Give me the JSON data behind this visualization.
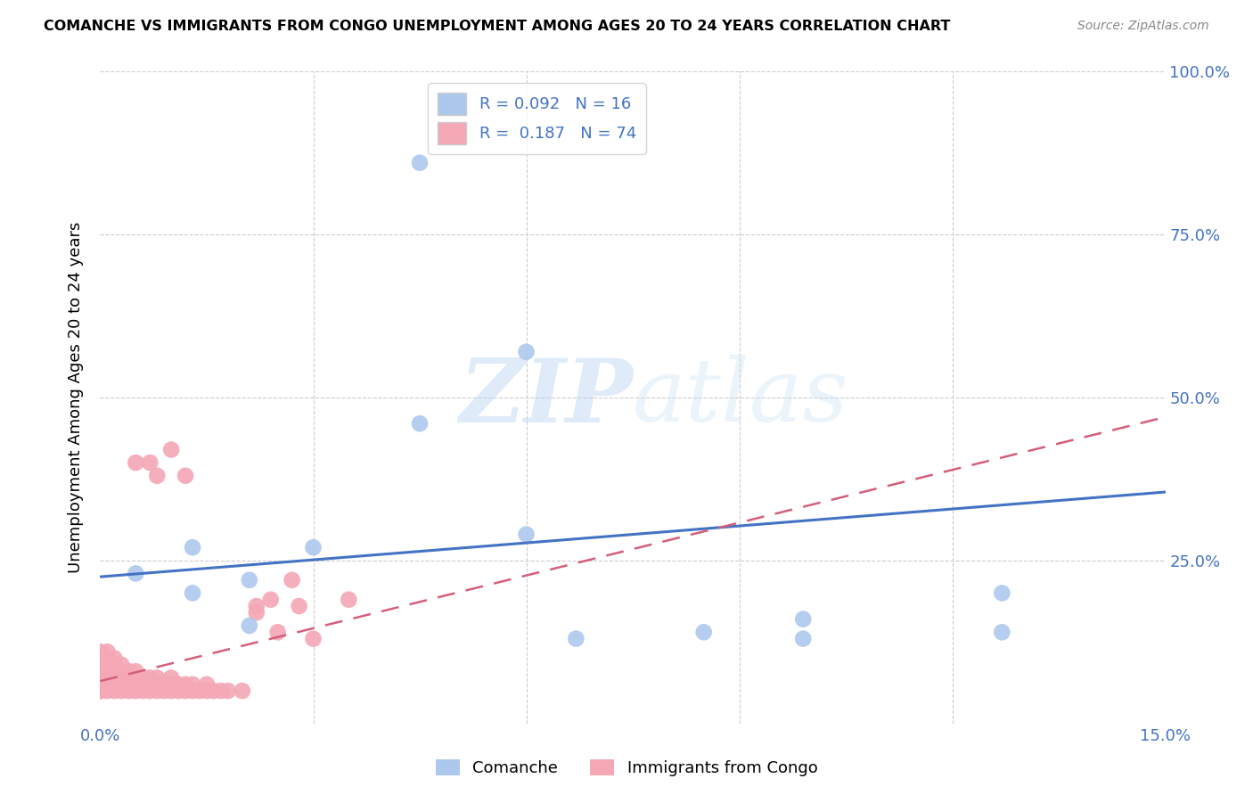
{
  "title": "COMANCHE VS IMMIGRANTS FROM CONGO UNEMPLOYMENT AMONG AGES 20 TO 24 YEARS CORRELATION CHART",
  "source": "Source: ZipAtlas.com",
  "ylabel": "Unemployment Among Ages 20 to 24 years",
  "xlim": [
    0.0,
    0.15
  ],
  "ylim": [
    0.0,
    1.0
  ],
  "comanche_R": 0.092,
  "comanche_N": 16,
  "congo_R": 0.187,
  "congo_N": 74,
  "comanche_color": "#adc8ed",
  "congo_color": "#f4a7b5",
  "comanche_line_color": "#4472c4",
  "congo_line_color": "#d45f7a",
  "background_color": "#ffffff",
  "comanche_x": [
    0.013,
    0.013,
    0.021,
    0.03,
    0.045,
    0.045,
    0.06,
    0.06,
    0.067,
    0.085,
    0.099,
    0.099,
    0.127,
    0.127,
    0.005,
    0.021
  ],
  "comanche_y": [
    0.27,
    0.2,
    0.22,
    0.27,
    0.86,
    0.46,
    0.57,
    0.29,
    0.13,
    0.14,
    0.16,
    0.13,
    0.2,
    0.14,
    0.23,
    0.15
  ],
  "congo_x": [
    0.0,
    0.0,
    0.0,
    0.0,
    0.0,
    0.0,
    0.0,
    0.0,
    0.001,
    0.001,
    0.001,
    0.001,
    0.001,
    0.001,
    0.001,
    0.002,
    0.002,
    0.002,
    0.002,
    0.002,
    0.002,
    0.003,
    0.003,
    0.003,
    0.003,
    0.003,
    0.004,
    0.004,
    0.004,
    0.004,
    0.005,
    0.005,
    0.005,
    0.005,
    0.006,
    0.006,
    0.006,
    0.007,
    0.007,
    0.007,
    0.008,
    0.008,
    0.008,
    0.009,
    0.009,
    0.01,
    0.01,
    0.01,
    0.011,
    0.011,
    0.012,
    0.012,
    0.013,
    0.013,
    0.014,
    0.015,
    0.015,
    0.016,
    0.017,
    0.018,
    0.02,
    0.022,
    0.024,
    0.025,
    0.027,
    0.028,
    0.03,
    0.035,
    0.005,
    0.007,
    0.008,
    0.01,
    0.012,
    0.022
  ],
  "congo_y": [
    0.05,
    0.06,
    0.07,
    0.08,
    0.09,
    0.1,
    0.11,
    0.05,
    0.05,
    0.06,
    0.07,
    0.08,
    0.09,
    0.1,
    0.11,
    0.05,
    0.06,
    0.07,
    0.08,
    0.09,
    0.1,
    0.05,
    0.06,
    0.07,
    0.08,
    0.09,
    0.05,
    0.06,
    0.07,
    0.08,
    0.05,
    0.06,
    0.07,
    0.08,
    0.05,
    0.06,
    0.07,
    0.05,
    0.06,
    0.07,
    0.05,
    0.06,
    0.07,
    0.05,
    0.06,
    0.05,
    0.06,
    0.07,
    0.05,
    0.06,
    0.05,
    0.06,
    0.05,
    0.06,
    0.05,
    0.05,
    0.06,
    0.05,
    0.05,
    0.05,
    0.05,
    0.17,
    0.19,
    0.14,
    0.22,
    0.18,
    0.13,
    0.19,
    0.4,
    0.4,
    0.38,
    0.42,
    0.38,
    0.18
  ]
}
